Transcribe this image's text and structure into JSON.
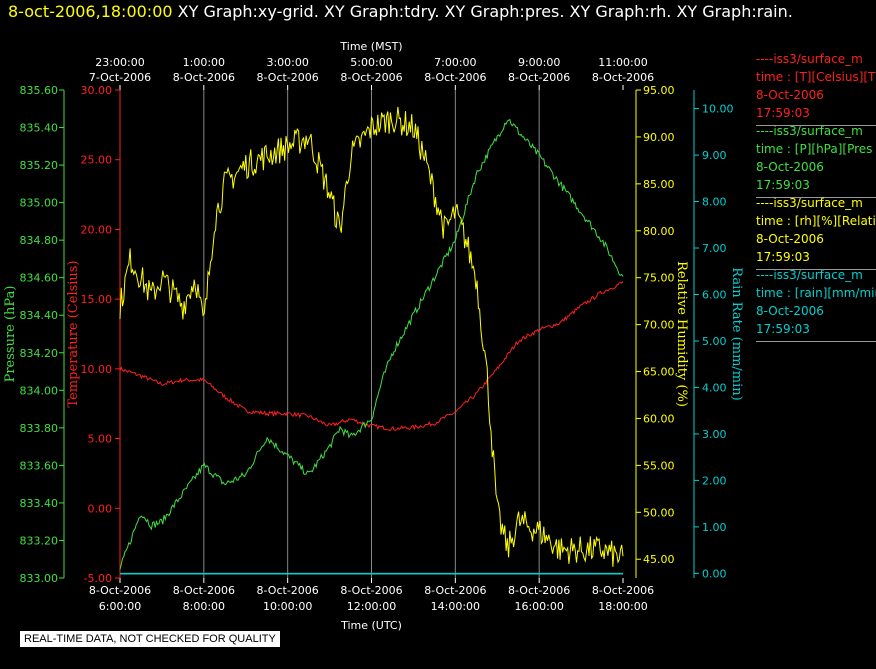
{
  "header": {
    "time": "8-oct-2006,18:00:00",
    "titles": "XY Graph:xy-grid.  XY Graph:tdry.  XY Graph:pres.  XY Graph:rh.  XY Graph:rain."
  },
  "notice": "REAL-TIME DATA, NOT CHECKED FOR QUALITY",
  "legend": [
    {
      "series": "----iss3/surface_m",
      "line2": "time : [T][Celsius][T",
      "date": "8-Oct-2006",
      "time": "17:59:03",
      "color": "#ff2020"
    },
    {
      "series": "----iss3/surface_m",
      "line2": "time : [P][hPa][Pres",
      "date": "8-Oct-2006",
      "time": "17:59:03",
      "color": "#40e040"
    },
    {
      "series": "----iss3/surface_m",
      "line2": "time : [rh][%][Relativ",
      "date": "8-Oct-2006",
      "time": "17:59:03",
      "color": "#ffff00"
    },
    {
      "series": "----iss3/surface_m",
      "line2": "time : [rain][mm/min",
      "date": "8-Oct-2006",
      "time": "17:59:03",
      "color": "#00d0d0"
    }
  ],
  "chart_data": {
    "type": "line",
    "x_top_label": "Time (MST)",
    "x_bottom_label": "Time (UTC)",
    "x_bottom_ticks": [
      {
        "d": "8-Oct-2006",
        "t": "6:00:00"
      },
      {
        "d": "8-Oct-2006",
        "t": "8:00:00"
      },
      {
        "d": "8-Oct-2006",
        "t": "10:00:00"
      },
      {
        "d": "8-Oct-2006",
        "t": "12:00:00"
      },
      {
        "d": "8-Oct-2006",
        "t": "14:00:00"
      },
      {
        "d": "8-Oct-2006",
        "t": "16:00:00"
      },
      {
        "d": "8-Oct-2006",
        "t": "18:00:00"
      }
    ],
    "x_top_ticks": [
      {
        "t": "23:00:00",
        "d": "7-Oct-2006"
      },
      {
        "t": "1:00:00",
        "d": "8-Oct-2006"
      },
      {
        "t": "3:00:00",
        "d": "8-Oct-2006"
      },
      {
        "t": "5:00:00",
        "d": "8-Oct-2006"
      },
      {
        "t": "7:00:00",
        "d": "8-Oct-2006"
      },
      {
        "t": "9:00:00",
        "d": "8-Oct-2006"
      },
      {
        "t": "11:00:00",
        "d": "8-Oct-2006"
      }
    ],
    "axes": {
      "pressure": {
        "label": "Pressure (hPa)",
        "min": 833.0,
        "max": 835.6,
        "ticks": [
          833.0,
          833.2,
          833.4,
          833.6,
          833.8,
          834.0,
          834.2,
          834.4,
          834.6,
          834.8,
          835.0,
          835.2,
          835.4,
          835.6
        ],
        "color": "#40e040"
      },
      "temperature": {
        "label": "Temperature (Celsius)",
        "min": -5,
        "max": 30,
        "ticks": [
          -5,
          0,
          5,
          10,
          15,
          20,
          25,
          30
        ],
        "color": "#ff2020"
      },
      "humidity": {
        "label": "Relative Humidity (%)",
        "min": 43,
        "max": 95,
        "ticks": [
          45,
          50,
          55,
          60,
          65,
          70,
          75,
          80,
          85,
          90,
          95
        ],
        "color": "#ffff00"
      },
      "rain": {
        "label": "Rain Rate (mm/min)",
        "min": -0.1,
        "max": 10.4,
        "ticks": [
          0,
          1,
          2,
          3,
          4,
          5,
          6,
          7,
          8,
          9,
          10
        ],
        "color": "#00d0d0"
      }
    },
    "x_range": [
      6,
      18
    ],
    "series": [
      {
        "name": "Temperature",
        "axis": "temperature",
        "color": "#ff2020",
        "x": [
          6,
          6.5,
          7,
          7.5,
          8,
          8.5,
          9,
          9.5,
          10,
          10.5,
          11,
          11.5,
          12,
          12.5,
          13,
          13.5,
          14,
          14.5,
          15,
          15.5,
          16,
          16.5,
          17,
          17.5,
          18
        ],
        "y": [
          10.0,
          9.5,
          8.9,
          9.2,
          9.2,
          8.0,
          7.0,
          6.8,
          6.8,
          6.6,
          5.9,
          6.4,
          5.9,
          5.7,
          5.8,
          6.1,
          6.9,
          8.2,
          10.0,
          12.0,
          12.8,
          13.3,
          14.5,
          15.5,
          16.2
        ]
      },
      {
        "name": "Pressure",
        "axis": "pressure",
        "color": "#40e040",
        "x": [
          6,
          6.25,
          6.5,
          6.75,
          7,
          7.5,
          8,
          8.5,
          9,
          9.5,
          9.75,
          10,
          10.5,
          11,
          11.25,
          11.5,
          12,
          12.25,
          12.5,
          13,
          13.5,
          14,
          14.5,
          15,
          15.25,
          15.5,
          16,
          16.5,
          17,
          17.5,
          18
        ],
        "y": [
          833.05,
          833.2,
          833.35,
          833.28,
          833.3,
          833.45,
          833.6,
          833.5,
          833.55,
          833.75,
          833.7,
          833.65,
          833.55,
          833.7,
          833.8,
          833.75,
          833.85,
          834.05,
          834.2,
          834.4,
          834.6,
          834.8,
          835.15,
          835.35,
          835.45,
          835.38,
          835.25,
          835.1,
          834.95,
          834.8,
          834.6
        ]
      },
      {
        "name": "Relative Humidity",
        "axis": "humidity",
        "color": "#ffff00",
        "x": [
          6,
          6.25,
          6.5,
          6.75,
          7,
          7.5,
          7.8,
          8,
          8.25,
          8.5,
          9,
          9.5,
          10,
          10.5,
          11,
          11.25,
          11.5,
          12,
          12.5,
          13,
          13.25,
          13.5,
          13.75,
          14,
          14.25,
          14.5,
          14.75,
          15,
          15.25,
          15.5,
          16,
          16.5,
          17,
          17.5,
          18
        ],
        "y": [
          72,
          77,
          75,
          73,
          75,
          72,
          75,
          70,
          81,
          85,
          87,
          88,
          89,
          90,
          84,
          80,
          88,
          91,
          92,
          91,
          88,
          84,
          80,
          82,
          79,
          75,
          65,
          50,
          46,
          49,
          48,
          46,
          46,
          46,
          45
        ]
      },
      {
        "name": "Rain Rate",
        "axis": "rain",
        "color": "#00d0d0",
        "x": [
          6,
          18
        ],
        "y": [
          0.0,
          0.0
        ]
      }
    ]
  }
}
